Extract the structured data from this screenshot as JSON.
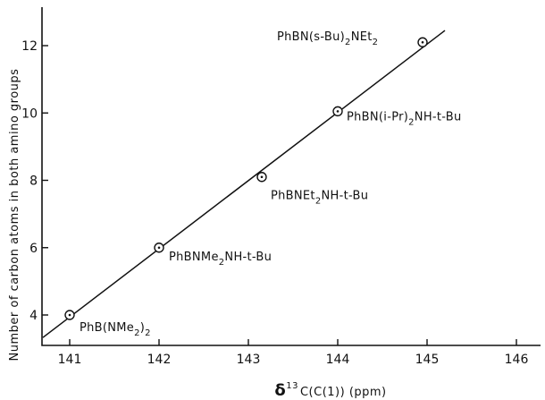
{
  "chart_data": {
    "type": "scatter",
    "title": "",
    "xlabel_prefix": "δ",
    "xlabel_sup": "13",
    "xlabel_rest": "C(C(1)) (ppm)",
    "ylabel": "Number of carbon atoms in both amino groups",
    "xlim": [
      140.7,
      146
    ],
    "ylim": [
      2.9,
      12.8
    ],
    "xticks": [
      141,
      142,
      143,
      144,
      145,
      146
    ],
    "yticks": [
      4,
      6,
      8,
      10,
      12
    ],
    "grid": false,
    "points": [
      {
        "x": 141.0,
        "y": 4,
        "label_main": "PhB(NMe",
        "label_sub": "2",
        "label_tail": ")",
        "label_sub2": "2",
        "label_tail2": ""
      },
      {
        "x": 142.0,
        "y": 6,
        "label_main": "PhBNMe",
        "label_sub": "2",
        "label_tail": "NH-t-Bu",
        "label_sub2": "",
        "label_tail2": ""
      },
      {
        "x": 143.15,
        "y": 8.1,
        "label_main": "PhBNEt",
        "label_sub": "2",
        "label_tail": "NH-t-Bu",
        "label_sub2": "",
        "label_tail2": ""
      },
      {
        "x": 144.0,
        "y": 10.05,
        "label_main": "PhBN(i-Pr)",
        "label_sub": "2",
        "label_tail": "NH-t-Bu",
        "label_sub2": "",
        "label_tail2": ""
      },
      {
        "x": 144.95,
        "y": 12.1,
        "label_main": "PhBN(s-Bu)",
        "label_sub": "2",
        "label_tail": "NEt",
        "label_sub2": "2",
        "label_tail2": ""
      }
    ],
    "fit_line": {
      "x": [
        140.7,
        145.2
      ],
      "y": [
        3.33,
        12.45
      ]
    }
  }
}
